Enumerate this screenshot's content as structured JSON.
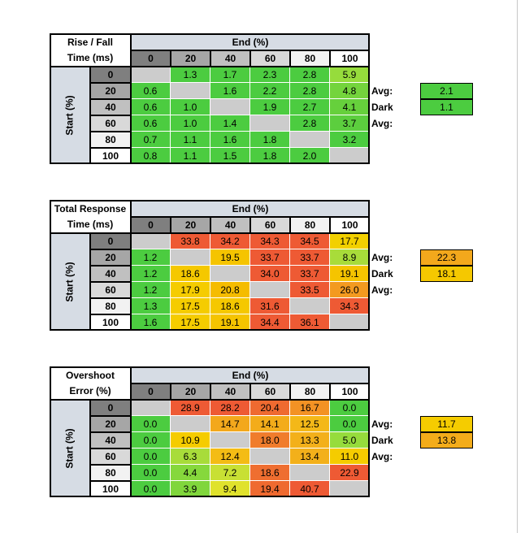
{
  "chart_data": [
    {
      "type": "table",
      "title_lines": [
        "Rise / Fall",
        "Time (ms)"
      ],
      "col_axis_label": "End (%)",
      "row_axis_label": "Start (%)",
      "columns": [
        "0",
        "20",
        "40",
        "60",
        "80",
        "100"
      ],
      "rows": [
        "0",
        "20",
        "40",
        "60",
        "80",
        "100"
      ],
      "values": [
        [
          "",
          "1.3",
          "1.7",
          "2.3",
          "2.8",
          "5.9"
        ],
        [
          "0.6",
          "",
          "1.6",
          "2.2",
          "2.8",
          "4.8"
        ],
        [
          "0.6",
          "1.0",
          "",
          "1.9",
          "2.7",
          "4.1"
        ],
        [
          "0.6",
          "1.0",
          "1.4",
          "",
          "2.8",
          "3.7"
        ],
        [
          "0.7",
          "1.1",
          "1.6",
          "1.8",
          "",
          "3.2"
        ],
        [
          "0.8",
          "1.1",
          "1.5",
          "1.8",
          "2.0",
          ""
        ]
      ],
      "colors": [
        [
          "#cccccc",
          "#4ccc40",
          "#4ccc40",
          "#4ccc40",
          "#4ccc40",
          "#96dc3c"
        ],
        [
          "#4ccc40",
          "#cccccc",
          "#4ccc40",
          "#4ccc40",
          "#4ccc40",
          "#74d43c"
        ],
        [
          "#4ccc40",
          "#4ccc40",
          "#cccccc",
          "#4ccc40",
          "#4ccc40",
          "#66d03c"
        ],
        [
          "#4ccc40",
          "#4ccc40",
          "#4ccc40",
          "#cccccc",
          "#4ccc40",
          "#5cce3e"
        ],
        [
          "#4ccc40",
          "#4ccc40",
          "#4ccc40",
          "#4ccc40",
          "#cccccc",
          "#4ccc40"
        ],
        [
          "#4ccc40",
          "#4ccc40",
          "#4ccc40",
          "#4ccc40",
          "#4ccc40",
          "#cccccc"
        ]
      ],
      "avg_label": "Avg:",
      "avg_value": "2.1",
      "avg_color": "#4ccc40",
      "dark_avg_label": "Dark Avg:",
      "dark_avg_value": "1.1",
      "dark_avg_color": "#4ccc40"
    },
    {
      "type": "table",
      "title_lines": [
        "Total Response",
        "Time (ms)"
      ],
      "col_axis_label": "End (%)",
      "row_axis_label": "Start (%)",
      "columns": [
        "0",
        "20",
        "40",
        "60",
        "80",
        "100"
      ],
      "rows": [
        "0",
        "20",
        "40",
        "60",
        "80",
        "100"
      ],
      "values": [
        [
          "",
          "33.8",
          "34.2",
          "34.3",
          "34.5",
          "17.7"
        ],
        [
          "1.2",
          "",
          "19.5",
          "33.7",
          "33.7",
          "8.9"
        ],
        [
          "1.2",
          "18.6",
          "",
          "34.0",
          "33.7",
          "19.1"
        ],
        [
          "1.2",
          "17.9",
          "20.8",
          "",
          "33.5",
          "26.0"
        ],
        [
          "1.3",
          "17.5",
          "18.6",
          "31.6",
          "",
          "34.3"
        ],
        [
          "1.6",
          "17.5",
          "19.1",
          "34.4",
          "36.1",
          ""
        ]
      ],
      "colors": [
        [
          "#cccccc",
          "#ee5a34",
          "#ee5a34",
          "#ee5a34",
          "#ee5a34",
          "#f2d000"
        ],
        [
          "#4ccc40",
          "#cccccc",
          "#f5c400",
          "#ee5a34",
          "#ee5a34",
          "#a8dc3a"
        ],
        [
          "#4ccc40",
          "#f5c800",
          "#cccccc",
          "#ee5a34",
          "#ee5a34",
          "#f5c400"
        ],
        [
          "#4ccc40",
          "#f5cc00",
          "#f5bc00",
          "#cccccc",
          "#ee5a34",
          "#f39a20"
        ],
        [
          "#4ccc40",
          "#f5cc00",
          "#f5c800",
          "#ee5a34",
          "#cccccc",
          "#ee5a34"
        ],
        [
          "#4ccc40",
          "#f5cc00",
          "#f5c400",
          "#ee5a34",
          "#ee5a34",
          "#cccccc"
        ]
      ],
      "avg_label": "Avg:",
      "avg_value": "22.3",
      "avg_color": "#f3a81c",
      "dark_avg_label": "Dark Avg:",
      "dark_avg_value": "18.1",
      "dark_avg_color": "#f5c800"
    },
    {
      "type": "table",
      "title_lines": [
        "Overshoot",
        "Error (%)"
      ],
      "col_axis_label": "End (%)",
      "row_axis_label": "Start (%)",
      "columns": [
        "0",
        "20",
        "40",
        "60",
        "80",
        "100"
      ],
      "rows": [
        "0",
        "20",
        "40",
        "60",
        "80",
        "100"
      ],
      "values": [
        [
          "",
          "28.9",
          "28.2",
          "20.4",
          "16.7",
          "0.0"
        ],
        [
          "0.0",
          "",
          "14.7",
          "14.1",
          "12.5",
          "0.0"
        ],
        [
          "0.0",
          "10.9",
          "",
          "18.0",
          "13.3",
          "5.0"
        ],
        [
          "0.0",
          "6.3",
          "12.4",
          "",
          "13.4",
          "11.0"
        ],
        [
          "0.0",
          "4.4",
          "7.2",
          "18.6",
          "",
          "22.9"
        ],
        [
          "0.0",
          "3.9",
          "9.4",
          "19.4",
          "40.7",
          ""
        ]
      ],
      "colors": [
        [
          "#cccccc",
          "#ee5a34",
          "#ee5a34",
          "#ef6a30",
          "#f39224",
          "#4ccc40"
        ],
        [
          "#4ccc40",
          "#cccccc",
          "#f3a81c",
          "#f3ac1a",
          "#f4b818",
          "#4ccc40"
        ],
        [
          "#4ccc40",
          "#f5cc00",
          "#cccccc",
          "#f07c2c",
          "#f3b01a",
          "#96dc3c"
        ],
        [
          "#4ccc40",
          "#a8dc3a",
          "#f4bc14",
          "#cccccc",
          "#f3b01a",
          "#f5cc00"
        ],
        [
          "#4ccc40",
          "#86d83c",
          "#c8e034",
          "#ef6e30",
          "#cccccc",
          "#ee5a34"
        ],
        [
          "#4ccc40",
          "#80d63c",
          "#e0e22c",
          "#ef6a30",
          "#ee5a34",
          "#cccccc"
        ]
      ],
      "avg_label": "Avg:",
      "avg_value": "11.7",
      "avg_color": "#f5cc00",
      "dark_avg_label": "Dark Avg:",
      "dark_avg_value": "13.8",
      "dark_avg_color": "#f3ac1a"
    }
  ],
  "header_cell_colors": [
    "#7f7f7f",
    "#a6a6a6",
    "#c0c0c0",
    "#d9d9d9",
    "#f2f2f2",
    "#ffffff"
  ]
}
